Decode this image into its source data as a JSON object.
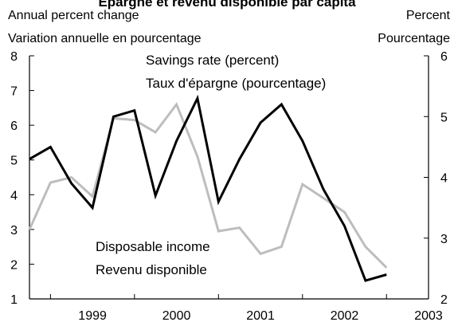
{
  "chart_data": {
    "type": "line",
    "title": "Épargne et revenu disponible par capita",
    "left_axis_label_en": "Annual percent change",
    "left_axis_label_fr": "Variation annuelle en pourcentage",
    "right_axis_label_en": "Percent",
    "right_axis_label_fr": "Pourcentage",
    "left_ylim": [
      1,
      8
    ],
    "right_ylim": [
      2,
      6
    ],
    "left_ticks": [
      "8",
      "7",
      "6",
      "5",
      "4",
      "3",
      "2",
      "1"
    ],
    "right_ticks": [
      "6",
      "5",
      "4",
      "3",
      "2"
    ],
    "x_tick_labels": [
      "1999",
      "2000",
      "2001",
      "2002",
      "2003"
    ],
    "x_quarters": [
      "1998Q4",
      "1999Q1",
      "1999Q2",
      "1999Q3",
      "1999Q4",
      "2000Q1",
      "2000Q2",
      "2000Q3",
      "2000Q4",
      "2001Q1",
      "2001Q2",
      "2001Q3",
      "2001Q4",
      "2002Q1",
      "2002Q2",
      "2002Q3",
      "2002Q4",
      "2003Q1"
    ],
    "series": [
      {
        "name": "Savings rate (percent)",
        "name_fr": "Taux d'épargne (pourcentage)",
        "axis": "right",
        "color": "#000000",
        "values": [
          4.3,
          4.5,
          3.9,
          3.5,
          5.0,
          5.1,
          3.7,
          4.6,
          5.3,
          3.6,
          4.3,
          4.9,
          5.2,
          4.6,
          3.8,
          3.2,
          2.3,
          2.4
        ]
      },
      {
        "name": "Disposable income",
        "name_fr": "Revenu disponible",
        "axis": "left",
        "color": "#bdbdbd",
        "values": [
          3.0,
          4.35,
          4.5,
          3.95,
          6.2,
          6.15,
          5.8,
          6.6,
          5.1,
          2.95,
          3.05,
          2.3,
          2.5,
          4.3,
          3.9,
          3.5,
          2.5,
          1.9
        ]
      }
    ],
    "annotations": {
      "savings_en": "Savings rate (percent)",
      "savings_fr": "Taux d'épargne (pourcentage)",
      "income_en": "Disposable income",
      "income_fr": "Revenu disponible"
    },
    "grid": false,
    "legend": "none"
  }
}
